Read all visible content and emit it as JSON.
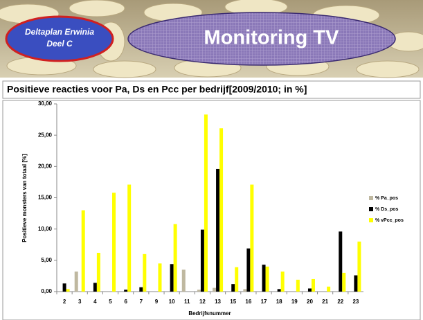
{
  "header": {
    "badge": [
      "Deltaplan Erwinia",
      "Deel C"
    ],
    "title": "Monitoring TV"
  },
  "chart_data": {
    "type": "bar",
    "title": "Positieve reacties voor Pa, Ds en Pcc per bedrijf[2009/2010; in %]",
    "x_label": "Bedrijfsnummer",
    "y_label": "Positieve monsters van totaal [%]",
    "categories": [
      "2",
      "3",
      "4",
      "5",
      "6",
      "7",
      "9",
      "10",
      "11",
      "12",
      "13",
      "15",
      "16",
      "17",
      "18",
      "19",
      "20",
      "21",
      "22",
      "23"
    ],
    "series": [
      {
        "name": "% Pa_pos",
        "color": "#bfb8a0",
        "values": [
          0,
          3.2,
          0,
          0,
          0,
          0,
          0,
          0,
          3.5,
          0.3,
          0.6,
          0,
          0.4,
          0,
          0,
          0,
          0,
          0,
          0,
          0
        ]
      },
      {
        "name": "% Ds_pos",
        "color": "#000000",
        "values": [
          1.3,
          0,
          1.4,
          0,
          0.3,
          0.7,
          0,
          4.4,
          0,
          9.9,
          19.6,
          1.2,
          6.9,
          4.3,
          0.4,
          0,
          0.5,
          0,
          9.6,
          2.6
        ]
      },
      {
        "name": "% vPcc_pos",
        "color": "#ffff00",
        "values": [
          0.4,
          13.0,
          6.2,
          15.8,
          17.1,
          6.0,
          4.5,
          10.8,
          0,
          28.3,
          26.1,
          3.9,
          17.1,
          4.0,
          3.2,
          1.9,
          2.0,
          0.8,
          3.0,
          8.0
        ]
      }
    ],
    "ylim": [
      0,
      30
    ],
    "yticks": [
      {
        "value": 0,
        "label": "0,00"
      },
      {
        "value": 5,
        "label": "5,00"
      },
      {
        "value": 10,
        "label": "10,00"
      },
      {
        "value": 15,
        "label": "15,00"
      },
      {
        "value": 20,
        "label": "20,00"
      },
      {
        "value": 25,
        "label": "25,00"
      },
      {
        "value": 30,
        "label": "30,00"
      }
    ],
    "grid": false,
    "legend": "right"
  }
}
